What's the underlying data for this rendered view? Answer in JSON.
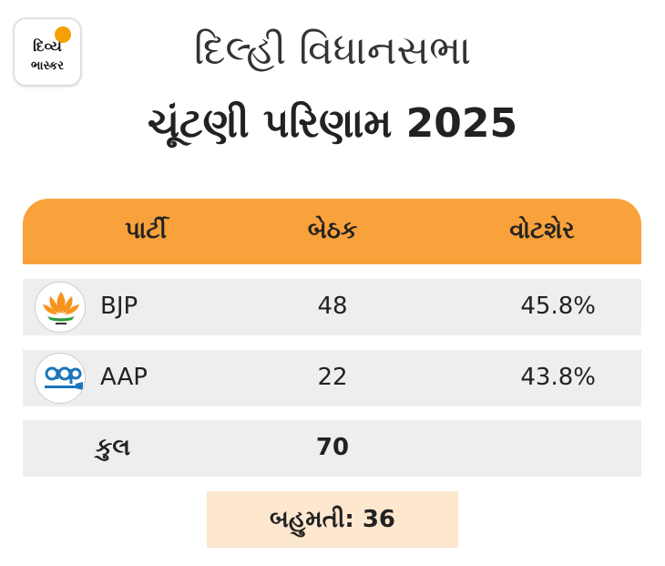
{
  "brand": {
    "line1": "દિવ્ય",
    "line2": "ભાસ્કર",
    "sun_color": "#f5a000"
  },
  "title": {
    "line1": "દિલ્હી વિધાનસભા",
    "line2": "ચૂંટણી પરિણામ 2025"
  },
  "table": {
    "header_color": "#f9a13a",
    "columns": [
      "પાર્ટી",
      "બેઠક",
      "વોટશેર"
    ],
    "rows": [
      {
        "party": "BJP",
        "seats": "48",
        "vote_share": "45.8%",
        "icon": "bjp-lotus-logo"
      },
      {
        "party": "AAP",
        "seats": "22",
        "vote_share": "43.8%",
        "icon": "aap-broom-logo"
      }
    ],
    "total": {
      "label": "કુલ",
      "seats": "70"
    }
  },
  "majority": {
    "text": "બહુમતી: 36",
    "bg": "#fde7cf"
  }
}
